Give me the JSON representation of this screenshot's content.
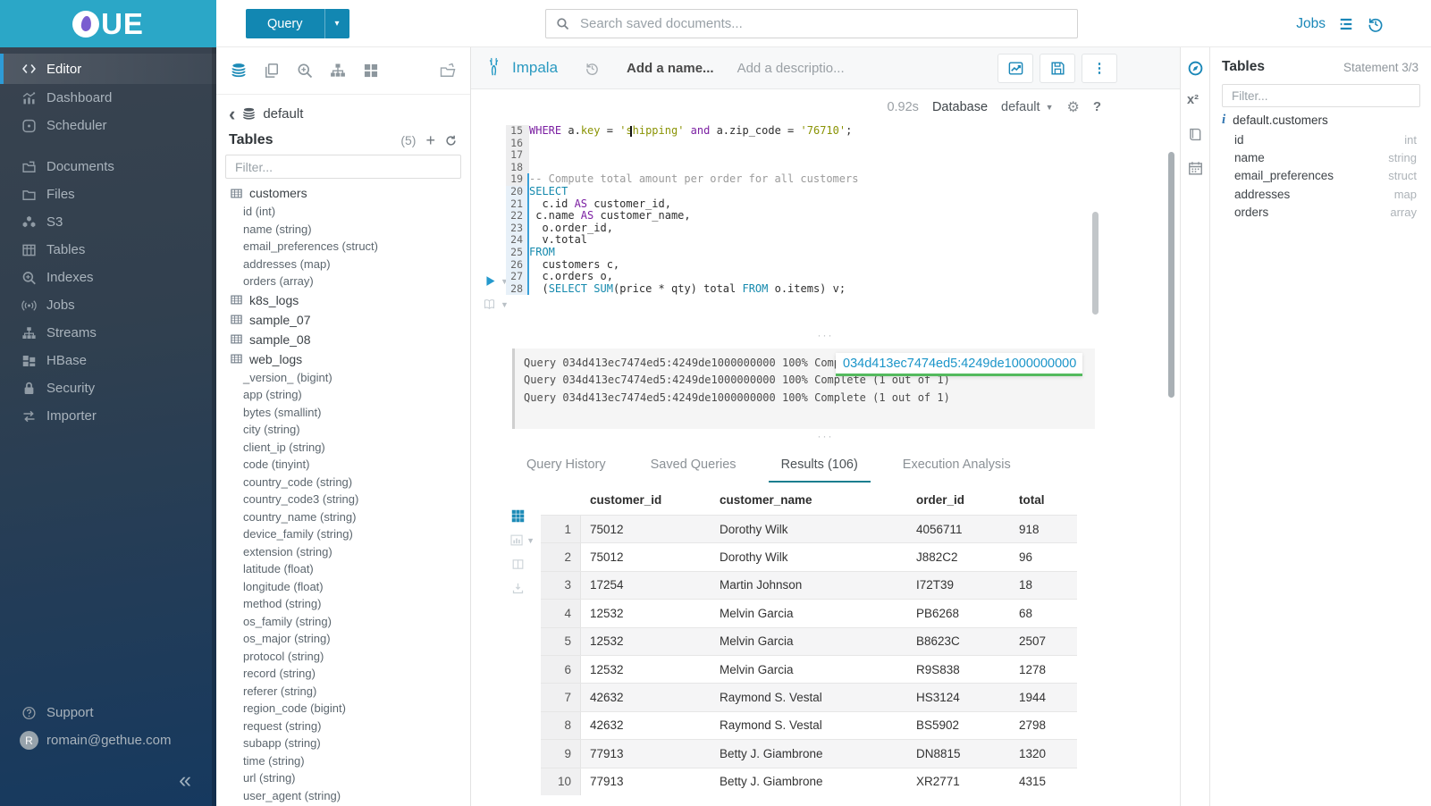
{
  "brand": {
    "logo_text": "UE",
    "header_color": "#2ba7c7",
    "accent_blue": "#1a87b8",
    "active_tab_teal": "#1b7e8f"
  },
  "topbar": {
    "query_button": "Query",
    "search_placeholder": "Search saved documents...",
    "jobs_label": "Jobs"
  },
  "sidebar": {
    "items": [
      {
        "label": "Editor",
        "icon": "code-icon",
        "active": true
      },
      {
        "label": "Dashboard",
        "icon": "dashboard-icon"
      },
      {
        "label": "Scheduler",
        "icon": "scheduler-icon"
      },
      {
        "label": "Documents",
        "icon": "documents-icon",
        "gap": true
      },
      {
        "label": "Files",
        "icon": "files-icon"
      },
      {
        "label": "S3",
        "icon": "s3-icon"
      },
      {
        "label": "Tables",
        "icon": "tables-icon"
      },
      {
        "label": "Indexes",
        "icon": "indexes-icon"
      },
      {
        "label": "Jobs",
        "icon": "jobs-icon"
      },
      {
        "label": "Streams",
        "icon": "streams-icon"
      },
      {
        "label": "HBase",
        "icon": "hbase-icon"
      },
      {
        "label": "Security",
        "icon": "security-icon"
      },
      {
        "label": "Importer",
        "icon": "importer-icon"
      }
    ],
    "support_label": "Support",
    "user_email": "romain@gethue.com",
    "user_initial": "R",
    "collapse_glyph": "«"
  },
  "left_assist": {
    "breadcrumb_db": "default",
    "tables_label": "Tables",
    "tables_count": "(5)",
    "filter_placeholder": "Filter...",
    "tables": [
      {
        "name": "customers",
        "columns": [
          "id (int)",
          "name (string)",
          "email_preferences (struct)",
          "addresses (map)",
          "orders (array)"
        ]
      },
      {
        "name": "k8s_logs",
        "columns": []
      },
      {
        "name": "sample_07",
        "columns": []
      },
      {
        "name": "sample_08",
        "columns": []
      },
      {
        "name": "web_logs",
        "columns": [
          "_version_ (bigint)",
          "app (string)",
          "bytes (smallint)",
          "city (string)",
          "client_ip (string)",
          "code (tinyint)",
          "country_code (string)",
          "country_code3 (string)",
          "country_name (string)",
          "device_family (string)",
          "extension (string)",
          "latitude (float)",
          "longitude (float)",
          "method (string)",
          "os_family (string)",
          "os_major (string)",
          "protocol (string)",
          "record (string)",
          "referer (string)",
          "region_code (bigint)",
          "request (string)",
          "subapp (string)",
          "time (string)",
          "url (string)",
          "user_agent (string)"
        ]
      }
    ]
  },
  "editor": {
    "engine": "Impala",
    "name_placeholder": "Add a name...",
    "description_placeholder": "Add a descriptio...",
    "exec_time": "0.92s",
    "database_label": "Database",
    "database_value": "default",
    "code_lines": [
      {
        "n": "15",
        "hl": 0,
        "tokens": [
          [
            "kw",
            "WHERE"
          ],
          [
            "txt",
            " a."
          ],
          [
            "str",
            "key"
          ],
          [
            "txt",
            " = "
          ],
          [
            "str",
            "'shipping'"
          ],
          [
            "txt",
            " "
          ],
          [
            "kw",
            "and"
          ],
          [
            "txt",
            " a.zip_code = "
          ],
          [
            "str",
            "'76710'"
          ],
          [
            "txt",
            ";"
          ]
        ]
      },
      {
        "n": "16",
        "hl": 0,
        "tokens": []
      },
      {
        "n": "17",
        "hl": 0,
        "tokens": []
      },
      {
        "n": "18",
        "hl": 0,
        "tokens": []
      },
      {
        "n": "19",
        "hl": 1,
        "tokens": [
          [
            "com",
            "-- Compute total amount per order for all customers"
          ]
        ]
      },
      {
        "n": "20",
        "hl": 2,
        "tokens": [
          [
            "kw2",
            "SELECT"
          ]
        ]
      },
      {
        "n": "21",
        "hl": 2,
        "tokens": [
          [
            "txt",
            "  c.id "
          ],
          [
            "kw",
            "AS"
          ],
          [
            "txt",
            " customer_id,"
          ]
        ]
      },
      {
        "n": "22",
        "hl": 2,
        "tokens": [
          [
            "txt",
            " c.name "
          ],
          [
            "kw",
            "AS"
          ],
          [
            "txt",
            " customer_name,"
          ]
        ]
      },
      {
        "n": "23",
        "hl": 2,
        "tokens": [
          [
            "txt",
            "  o.order_id,"
          ]
        ]
      },
      {
        "n": "24",
        "hl": 2,
        "tokens": [
          [
            "txt",
            "  v.total"
          ]
        ]
      },
      {
        "n": "25",
        "hl": 2,
        "tokens": [
          [
            "kw2",
            "FROM"
          ]
        ]
      },
      {
        "n": "26",
        "hl": 2,
        "tokens": [
          [
            "txt",
            "  customers c,"
          ]
        ]
      },
      {
        "n": "27",
        "hl": 2,
        "tokens": [
          [
            "txt",
            "  c.orders o,"
          ]
        ]
      },
      {
        "n": "28",
        "hl": 2,
        "tokens": [
          [
            "txt",
            "  ("
          ],
          [
            "kw2",
            "SELECT"
          ],
          [
            "txt",
            " "
          ],
          [
            "kw2",
            "SUM"
          ],
          [
            "txt",
            "(price * qty) total "
          ],
          [
            "kw2",
            "FROM"
          ],
          [
            "txt",
            " o.items) v;"
          ]
        ]
      }
    ]
  },
  "log": {
    "lines": [
      "Query 034d413ec7474ed5:4249de1000000000 100% Complete (1 out of 1)",
      "Query 034d413ec7474ed5:4249de1000000000 100% Complete (1 out of 1)",
      "Query 034d413ec7474ed5:4249de1000000000 100% Complete (1 out of 1)"
    ],
    "tooltip": "034d413ec7474ed5:4249de1000000000"
  },
  "results": {
    "tabs": [
      {
        "label": "Query History",
        "active": false
      },
      {
        "label": "Saved Queries",
        "active": false
      },
      {
        "label": "Results (106)",
        "active": true
      },
      {
        "label": "Execution Analysis",
        "active": false
      }
    ],
    "columns": [
      "customer_id",
      "customer_name",
      "order_id",
      "total"
    ],
    "rows": [
      [
        "1",
        "75012",
        "Dorothy Wilk",
        "4056711",
        "918"
      ],
      [
        "2",
        "75012",
        "Dorothy Wilk",
        "J882C2",
        "96"
      ],
      [
        "3",
        "17254",
        "Martin Johnson",
        "I72T39",
        "18"
      ],
      [
        "4",
        "12532",
        "Melvin Garcia",
        "PB6268",
        "68"
      ],
      [
        "5",
        "12532",
        "Melvin Garcia",
        "B8623C",
        "2507"
      ],
      [
        "6",
        "12532",
        "Melvin Garcia",
        "R9S838",
        "1278"
      ],
      [
        "7",
        "42632",
        "Raymond S. Vestal",
        "HS3124",
        "1944"
      ],
      [
        "8",
        "42632",
        "Raymond S. Vestal",
        "BS5902",
        "2798"
      ],
      [
        "9",
        "77913",
        "Betty J. Giambrone",
        "DN8815",
        "1320"
      ],
      [
        "10",
        "77913",
        "Betty J. Giambrone",
        "XR2771",
        "4315"
      ]
    ]
  },
  "right_assist": {
    "title": "Tables",
    "statement": "Statement 3/3",
    "filter_placeholder": "Filter...",
    "table_name": "default.customers",
    "columns": [
      {
        "name": "id",
        "type": "int"
      },
      {
        "name": "name",
        "type": "string"
      },
      {
        "name": "email_preferences",
        "type": "struct"
      },
      {
        "name": "addresses",
        "type": "map"
      },
      {
        "name": "orders",
        "type": "array"
      }
    ]
  }
}
